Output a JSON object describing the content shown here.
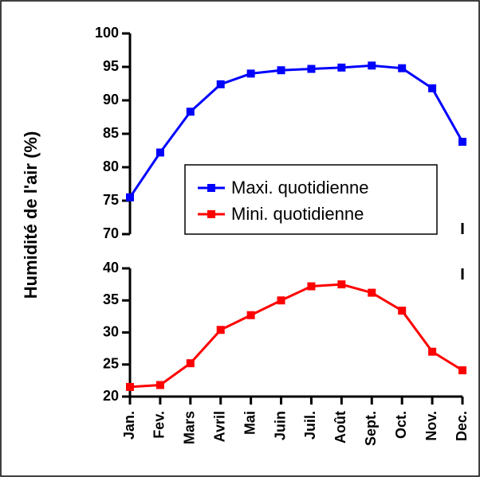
{
  "chart_data": {
    "type": "line",
    "ylabel": "Humidité de l'air (%)",
    "categories": [
      "Jan.",
      "Fev.",
      "Mars",
      "Avril",
      "Mai",
      "Juin",
      "Juil.",
      "Août",
      "Sept.",
      "Oct.",
      "Nov.",
      "Dec."
    ],
    "series": [
      {
        "name": "Maxi. quotidienne",
        "color": "#0000ff",
        "values": [
          75.5,
          82.2,
          88.3,
          92.4,
          94.0,
          94.5,
          94.7,
          94.9,
          95.2,
          94.8,
          91.8,
          83.8
        ]
      },
      {
        "name": "Mini. quotidienne",
        "color": "#ff0000",
        "axis": "y2",
        "values": [
          21.5,
          21.8,
          25.2,
          30.4,
          32.7,
          35.0,
          37.2,
          37.5,
          36.2,
          33.4,
          27.0,
          24.1
        ]
      }
    ],
    "ylim": [
      70,
      100
    ],
    "yticks": [
      70,
      75,
      80,
      85,
      90,
      95,
      100
    ],
    "y2lim": [
      20,
      40
    ],
    "y2ticks": [
      20,
      25,
      30,
      35,
      40
    ],
    "legend": "center right"
  }
}
